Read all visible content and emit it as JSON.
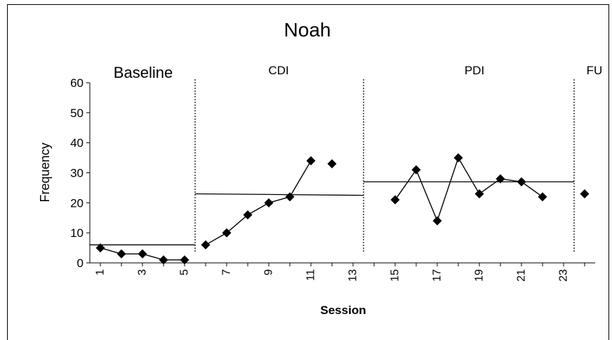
{
  "chart_data": {
    "type": "line",
    "title": "Noah",
    "xlabel": "Session",
    "ylabel": "Frequency",
    "ylim": [
      0,
      60
    ],
    "yticks": [
      0,
      10,
      20,
      30,
      40,
      50,
      60
    ],
    "xlim": [
      0.5,
      24.5
    ],
    "xtick_labels": [
      "1",
      "3",
      "5",
      "7",
      "9",
      "11",
      "13",
      "15",
      "17",
      "19",
      "21",
      "23"
    ],
    "grid": false,
    "legend": "none",
    "phases": [
      {
        "label": "Baseline",
        "sessions": [
          1,
          2,
          3,
          4,
          5
        ],
        "values": [
          5,
          3,
          3,
          1,
          1
        ]
      },
      {
        "label": "CDI",
        "sessions": [
          6,
          7,
          8,
          9,
          10,
          11,
          12
        ],
        "values": [
          6,
          10,
          16,
          20,
          22,
          34,
          33
        ],
        "connected_until": 11
      },
      {
        "label": "PDI",
        "sessions": [
          15,
          16,
          17,
          18,
          19,
          20,
          21,
          22
        ],
        "values": [
          21,
          31,
          14,
          35,
          23,
          28,
          27,
          22
        ]
      },
      {
        "label": "FU",
        "sessions": [
          24
        ],
        "values": [
          23
        ]
      }
    ],
    "phase_change_lines": [
      5.5,
      13.5,
      23.5
    ],
    "trend_lines": [
      {
        "x": [
          0.5,
          5.5
        ],
        "y": [
          6,
          6
        ]
      },
      {
        "x": [
          5.5,
          13.5
        ],
        "y": [
          23,
          22.5
        ]
      },
      {
        "x": [
          13.5,
          23.5
        ],
        "y": [
          27,
          27
        ]
      }
    ],
    "marker": "diamond",
    "colors": {
      "line": "#000000",
      "marker": "#000000",
      "phase_line": "#000000"
    }
  }
}
